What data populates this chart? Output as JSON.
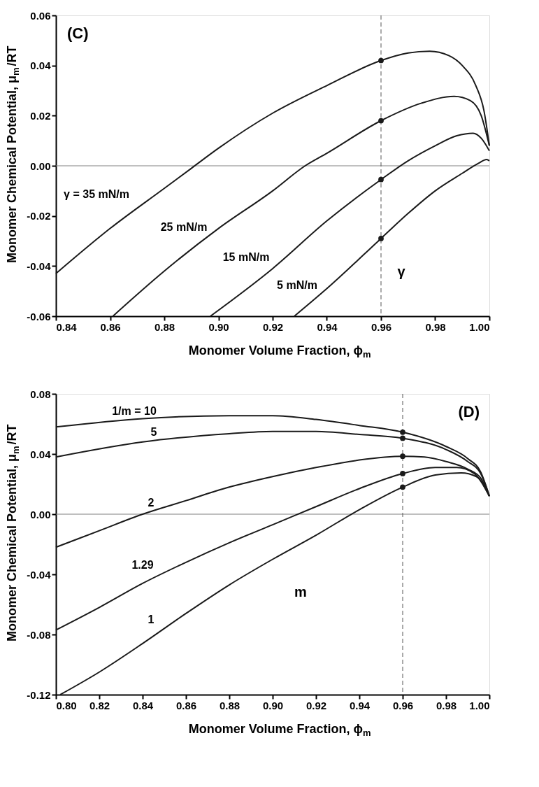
{
  "chart_data": [
    {
      "type": "line",
      "xlabel": "Monomer Volume Fraction, ϕ$_{m}$",
      "ylabel": "Monomer Chemical Potential, μ$_{m}$/RT",
      "xlim": [
        0.84,
        1.0
      ],
      "ylim": [
        -0.06,
        0.06
      ],
      "xticks": [
        0.84,
        0.86,
        0.88,
        {
          "value": 0.9,
          "label": "0.90"
        },
        0.92,
        0.94,
        0.96,
        0.98,
        {
          "value": 1.0,
          "label": "1.00"
        }
      ],
      "yticks": [
        -0.06,
        -0.04,
        -0.02,
        {
          "value": 0,
          "label": "0.00"
        },
        0.02,
        0.04,
        0.06
      ],
      "grid": false,
      "line_style": "solid",
      "series": [
        {
          "name": "γ = 35 mN/m",
          "color": "#1a1a1a",
          "x": [
            0.84,
            0.86,
            0.88,
            0.89,
            0.9,
            0.92,
            0.94,
            0.96,
            0.97,
            0.978,
            0.985,
            0.99,
            0.995,
            0.998,
            1.0
          ],
          "values": [
            -0.043,
            -0.025,
            -0.009,
            -0.001,
            0.007,
            0.021,
            0.032,
            0.042,
            0.045,
            0.0457,
            0.044,
            0.04,
            0.032,
            0.022,
            0.008
          ]
        },
        {
          "name": "25 mN/m",
          "color": "#1a1a1a",
          "x": [
            0.861,
            0.88,
            0.9,
            0.92,
            0.932,
            0.94,
            0.96,
            0.975,
            0.987,
            0.993,
            0.997,
            1.0
          ],
          "values": [
            -0.06,
            -0.042,
            -0.025,
            -0.01,
            0.0,
            0.005,
            0.018,
            0.025,
            0.0277,
            0.026,
            0.02,
            0.008
          ]
        },
        {
          "name": "15 mN/m",
          "color": "#1a1a1a",
          "x": [
            0.897,
            0.92,
            0.94,
            0.96,
            0.97,
            0.98,
            0.988,
            0.994,
            0.997,
            1.0
          ],
          "values": [
            -0.06,
            -0.041,
            -0.022,
            -0.0055,
            0.002,
            0.008,
            0.012,
            0.013,
            0.011,
            0.006
          ]
        },
        {
          "name": "5 mN/m",
          "color": "#1a1a1a",
          "x": [
            0.928,
            0.94,
            0.96,
            0.97,
            0.98,
            0.99,
            0.996,
            0.999,
            1.0
          ],
          "values": [
            -0.06,
            -0.049,
            -0.029,
            -0.019,
            -0.01,
            -0.003,
            0.001,
            0.0025,
            0.002
          ]
        },
        {
          "type": "scatter",
          "marker": "circle",
          "color": "#1a1a1a",
          "x": [
            0.96,
            0.96,
            0.96,
            0.96
          ],
          "values": [
            0.042,
            0.018,
            -0.0055,
            -0.029
          ]
        }
      ],
      "ref_lines": [
        {
          "axis": "y",
          "value": 0,
          "color": "#808080",
          "line_style": "solid"
        },
        {
          "axis": "x",
          "value": 0.96,
          "color": "#555555",
          "line_style": "dashed"
        }
      ],
      "annotations": [
        "(C)",
        "γ"
      ]
    },
    {
      "type": "line",
      "xlabel": "Monomer Volume Fraction, ϕ$_{m}$",
      "ylabel": "Monomer Chemical Potential, μ$_{m}$/RT",
      "xlim": [
        0.8,
        1.0
      ],
      "ylim": [
        -0.12,
        0.08
      ],
      "xticks": [
        {
          "value": 0.8,
          "label": "0.80"
        },
        0.82,
        0.84,
        0.86,
        0.88,
        {
          "value": 0.9,
          "label": "0.90"
        },
        0.92,
        0.94,
        0.96,
        0.98,
        {
          "value": 1.0,
          "label": "1.00"
        }
      ],
      "yticks": [
        -0.12,
        -0.08,
        -0.04,
        {
          "value": 0,
          "label": "0.00"
        },
        0.04,
        0.08
      ],
      "grid": false,
      "line_style": "solid",
      "series": [
        {
          "name": "1/m = 10",
          "color": "#1a1a1a",
          "x": [
            0.8,
            0.84,
            0.88,
            0.9,
            0.92,
            0.94,
            0.96,
            0.98,
            0.99,
            0.996,
            1.0
          ],
          "values": [
            0.058,
            0.0635,
            0.0655,
            0.0655,
            0.063,
            0.059,
            0.0545,
            0.045,
            0.037,
            0.028,
            0.012
          ]
        },
        {
          "name": "5",
          "color": "#1a1a1a",
          "x": [
            0.8,
            0.84,
            0.88,
            0.9,
            0.92,
            0.94,
            0.96,
            0.98,
            0.99,
            0.996,
            1.0
          ],
          "values": [
            0.038,
            0.048,
            0.0535,
            0.055,
            0.055,
            0.053,
            0.0505,
            0.043,
            0.035,
            0.027,
            0.012
          ]
        },
        {
          "name": "2",
          "color": "#1a1a1a",
          "x": [
            0.8,
            0.82,
            0.84,
            0.86,
            0.88,
            0.9,
            0.92,
            0.94,
            0.96,
            0.97,
            0.98,
            0.99,
            0.996,
            1.0
          ],
          "values": [
            -0.022,
            -0.011,
            0.0,
            0.009,
            0.018,
            0.025,
            0.031,
            0.036,
            0.0385,
            0.038,
            0.035,
            0.03,
            0.024,
            0.012
          ]
        },
        {
          "name": "1.29",
          "color": "#1a1a1a",
          "x": [
            0.8,
            0.82,
            0.84,
            0.86,
            0.88,
            0.9,
            0.92,
            0.94,
            0.96,
            0.975,
            0.985,
            0.993,
            1.0
          ],
          "values": [
            -0.077,
            -0.062,
            -0.046,
            -0.032,
            -0.019,
            -0.007,
            0.005,
            0.017,
            0.027,
            0.031,
            0.031,
            0.027,
            0.012
          ]
        },
        {
          "name": "1",
          "color": "#1a1a1a",
          "x": [
            0.802,
            0.82,
            0.84,
            0.86,
            0.88,
            0.9,
            0.92,
            0.94,
            0.96,
            0.975,
            0.987,
            0.994,
            1.0
          ],
          "values": [
            -0.12,
            -0.105,
            -0.086,
            -0.066,
            -0.047,
            -0.03,
            -0.014,
            0.003,
            0.018,
            0.026,
            0.0275,
            0.025,
            0.012
          ]
        },
        {
          "type": "scatter",
          "marker": "circle",
          "color": "#1a1a1a",
          "x": [
            0.96,
            0.96,
            0.96,
            0.96,
            0.96
          ],
          "values": [
            0.0545,
            0.0505,
            0.0385,
            0.027,
            0.018
          ]
        }
      ],
      "ref_lines": [
        {
          "axis": "y",
          "value": 0,
          "color": "#808080",
          "line_style": "solid"
        },
        {
          "axis": "x",
          "value": 0.96,
          "color": "#555555",
          "line_style": "dashed"
        }
      ],
      "annotations": [
        "(D)",
        "m"
      ]
    }
  ]
}
